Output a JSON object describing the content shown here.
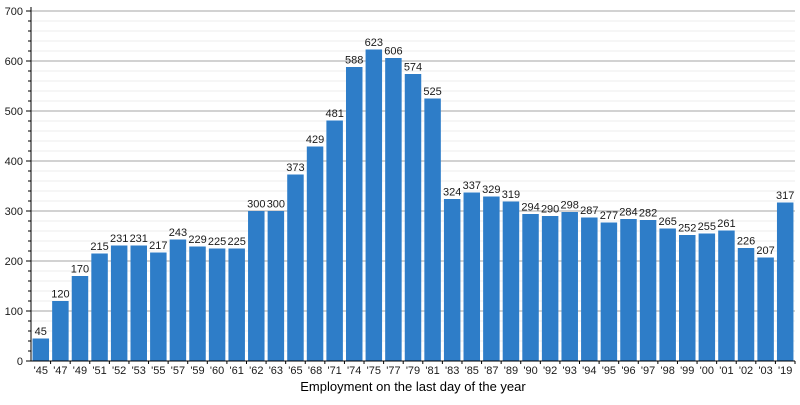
{
  "chart_data": {
    "type": "bar",
    "title": "",
    "xlabel": "Employment on the last day of the year",
    "ylabel": "",
    "ylim": [
      0,
      700
    ],
    "yticks": [
      0,
      100,
      200,
      300,
      400,
      500,
      600,
      700
    ],
    "minor_tick_step": 20,
    "grid": true,
    "legend": "none",
    "bar_color": "#2e7dc8",
    "categories": [
      "'45",
      "'47",
      "'49",
      "'51",
      "'52",
      "'53",
      "'55",
      "'57",
      "'59",
      "'60",
      "'61",
      "'62",
      "'63",
      "'65",
      "'68",
      "'71",
      "'74",
      "'75",
      "'77",
      "'79",
      "'81",
      "'83",
      "'85",
      "'87",
      "'89",
      "'90",
      "'92",
      "'93",
      "'94",
      "'95",
      "'96",
      "'97",
      "'98",
      "'99",
      "'00",
      "'01",
      "'02",
      "'03",
      "'19"
    ],
    "values": [
      45,
      120,
      170,
      215,
      231,
      231,
      217,
      243,
      229,
      225,
      225,
      300,
      300,
      373,
      429,
      481,
      588,
      623,
      606,
      574,
      525,
      324,
      337,
      329,
      319,
      294,
      290,
      298,
      287,
      277,
      284,
      282,
      265,
      252,
      255,
      261,
      226,
      207,
      317
    ]
  },
  "colors": {
    "bar": "#2e7dc8",
    "major_grid": "#a6a6a6",
    "minor_grid": "#ededed",
    "axis": "#000000",
    "label_text": "#1a1a1a"
  }
}
